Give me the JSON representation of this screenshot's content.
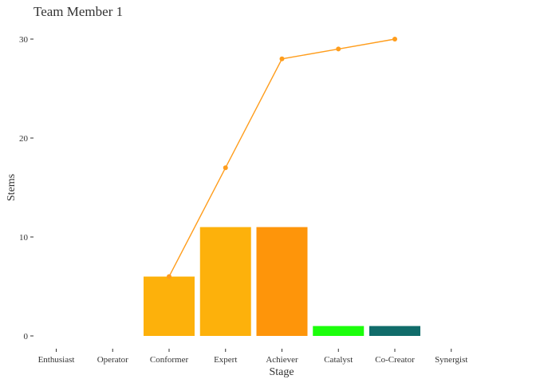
{
  "chart_data": {
    "type": "bar",
    "title": "Team Member 1",
    "xlabel": "Stage",
    "ylabel": "Stems",
    "categories": [
      "Enthusiast",
      "Operator",
      "Conformer",
      "Expert",
      "Achiever",
      "Catalyst",
      "Co-Creator",
      "Synergist"
    ],
    "bars": [
      {
        "category": "Conformer",
        "value": 6,
        "color": "#FDB10B"
      },
      {
        "category": "Expert",
        "value": 11,
        "color": "#FDB10B"
      },
      {
        "category": "Achiever",
        "value": 11,
        "color": "#FE950A"
      },
      {
        "category": "Catalyst",
        "value": 1,
        "color": "#1CFE0C"
      },
      {
        "category": "Co-Creator",
        "value": 1,
        "color": "#106C6A"
      }
    ],
    "cumulative_line": {
      "color": "#FF9D1C",
      "points": [
        {
          "category": "Conformer",
          "value": 6
        },
        {
          "category": "Expert",
          "value": 17
        },
        {
          "category": "Achiever",
          "value": 28
        },
        {
          "category": "Catalyst",
          "value": 29
        },
        {
          "category": "Co-Creator",
          "value": 30
        }
      ]
    },
    "y_ticks": [
      0,
      10,
      20,
      30
    ],
    "ylim": [
      0,
      30
    ],
    "grid": false,
    "legend": "none"
  }
}
